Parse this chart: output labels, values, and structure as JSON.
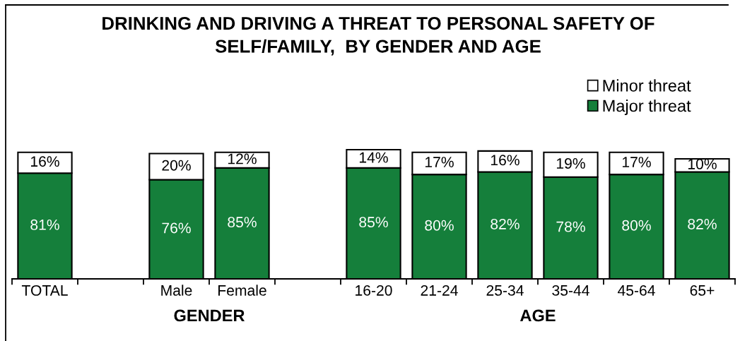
{
  "chart_data": {
    "type": "bar",
    "stacked": true,
    "title": "DRINKING AND DRIVING A THREAT TO PERSONAL SAFETY OF\nSELF/FAMILY,  BY GENDER AND AGE",
    "categories": [
      "TOTAL",
      null,
      "Male",
      "Female",
      null,
      "16-20",
      "21-24",
      "25-34",
      "35-44",
      "45-64",
      "65+"
    ],
    "series": [
      {
        "name": "Major threat",
        "color": "#157f3b",
        "values": [
          81,
          null,
          76,
          85,
          null,
          85,
          80,
          82,
          78,
          80,
          82
        ],
        "value_labels": [
          "81%",
          null,
          "76%",
          "85%",
          null,
          "85%",
          "80%",
          "82%",
          "78%",
          "80%",
          "82%"
        ]
      },
      {
        "name": "Minor threat",
        "color": "#ffffff",
        "values": [
          16,
          null,
          20,
          12,
          null,
          14,
          17,
          16,
          19,
          17,
          10
        ],
        "value_labels": [
          "16%",
          null,
          "20%",
          "12%",
          null,
          "14%",
          "17%",
          "16%",
          "19%",
          "17%",
          "10%"
        ]
      }
    ],
    "legend": "top right",
    "annotations": [
      "GENDER",
      "AGE"
    ]
  }
}
